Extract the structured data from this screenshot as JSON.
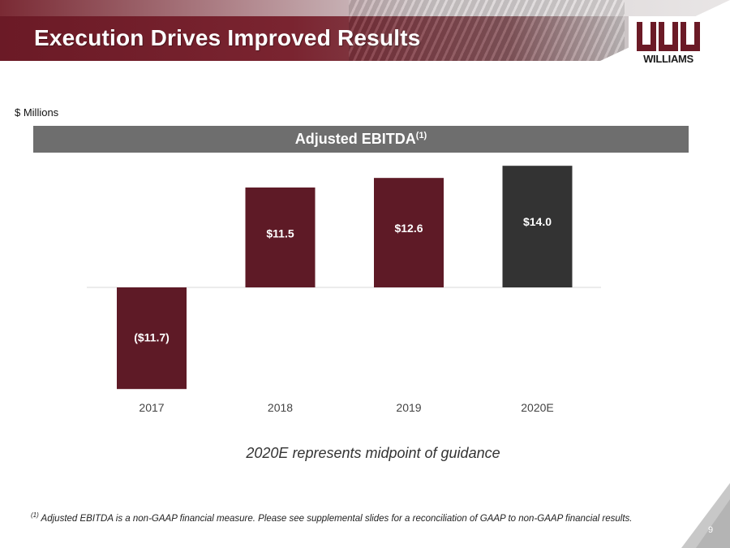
{
  "header": {
    "title": "Execution Drives Improved Results"
  },
  "logo": {
    "text": "WILLIAMS"
  },
  "units_label": "$ Millions",
  "chart_banner": {
    "title": "Adjusted EBITDA",
    "superscript": "(1)"
  },
  "chart_data": {
    "type": "bar",
    "title": "Adjusted EBITDA(1)",
    "ylabel": "$ Millions",
    "xlabel": "",
    "categories": [
      "2017",
      "2018",
      "2019",
      "2020E"
    ],
    "values": [
      -11.7,
      11.5,
      12.6,
      14.0
    ],
    "data_labels": [
      "($11.7)",
      "$11.5",
      "$12.6",
      "$14.0"
    ],
    "bar_colors": [
      "#5e1a26",
      "#5e1a26",
      "#5e1a26",
      "#333333"
    ],
    "ylim": [
      -15,
      15
    ],
    "grid": false,
    "legend": "none"
  },
  "note": "2020E represents midpoint of guidance",
  "footnote": {
    "marker": "(1)",
    "text": " Adjusted EBITDA is a non-GAAP financial measure. Please see supplemental slides for a reconciliation of GAAP to non-GAAP financial results."
  },
  "page_number": "9",
  "colors": {
    "brand": "#6b1a26",
    "banner_gray": "#6e6e6e",
    "forecast_bar": "#333333"
  }
}
